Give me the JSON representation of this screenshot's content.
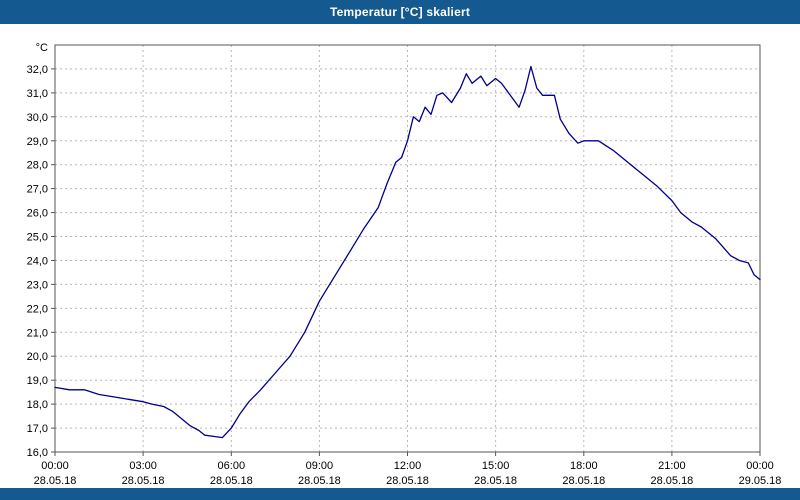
{
  "title_bar": {
    "title": "Temperatur [°C] skaliert",
    "bg": "#14598f",
    "fg": "#ffffff"
  },
  "footer": {
    "bg": "#14598f"
  },
  "chart_data": {
    "type": "line",
    "title": "Temperatur [°C] skaliert",
    "unit_label": "°C",
    "line_color": "#00008b",
    "grid_color": "#b8b8b8",
    "border_color": "#555555",
    "label_color": "#000000",
    "grid": "dashed",
    "legend_position": "none",
    "xlim_hours": [
      0,
      24
    ],
    "ylim": [
      16,
      33
    ],
    "ytick_values": [
      16,
      17,
      18,
      19,
      20,
      21,
      22,
      23,
      24,
      25,
      26,
      27,
      28,
      29,
      30,
      31,
      32
    ],
    "ytick_labels": [
      "16,0",
      "17,0",
      "18,0",
      "19,0",
      "20,0",
      "21,0",
      "22,0",
      "23,0",
      "24,0",
      "25,0",
      "26,0",
      "27,0",
      "28,0",
      "29,0",
      "30,0",
      "31,0",
      "32,0"
    ],
    "xtick_hours": [
      0,
      3,
      6,
      9,
      12,
      15,
      18,
      21,
      24
    ],
    "xtick_time_labels": [
      "00:00",
      "03:00",
      "06:00",
      "09:00",
      "12:00",
      "15:00",
      "18:00",
      "21:00",
      "00:00"
    ],
    "xtick_date_labels": [
      "28.05.18",
      "28.05.18",
      "28.05.18",
      "28.05.18",
      "28.05.18",
      "28.05.18",
      "28.05.18",
      "28.05.18",
      "29.05.18"
    ],
    "points": [
      [
        0.0,
        18.7
      ],
      [
        0.5,
        18.6
      ],
      [
        1.0,
        18.6
      ],
      [
        1.5,
        18.4
      ],
      [
        2.0,
        18.3
      ],
      [
        2.5,
        18.2
      ],
      [
        3.0,
        18.1
      ],
      [
        3.3,
        18.0
      ],
      [
        3.7,
        17.9
      ],
      [
        4.0,
        17.7
      ],
      [
        4.3,
        17.4
      ],
      [
        4.6,
        17.1
      ],
      [
        4.9,
        16.9
      ],
      [
        5.1,
        16.7
      ],
      [
        5.4,
        16.65
      ],
      [
        5.7,
        16.6
      ],
      [
        6.0,
        17.0
      ],
      [
        6.3,
        17.6
      ],
      [
        6.6,
        18.1
      ],
      [
        7.0,
        18.6
      ],
      [
        7.5,
        19.3
      ],
      [
        8.0,
        20.0
      ],
      [
        8.5,
        21.0
      ],
      [
        9.0,
        22.3
      ],
      [
        9.5,
        23.3
      ],
      [
        10.0,
        24.3
      ],
      [
        10.5,
        25.3
      ],
      [
        11.0,
        26.2
      ],
      [
        11.3,
        27.2
      ],
      [
        11.6,
        28.1
      ],
      [
        11.8,
        28.3
      ],
      [
        12.0,
        29.0
      ],
      [
        12.2,
        30.0
      ],
      [
        12.4,
        29.8
      ],
      [
        12.6,
        30.4
      ],
      [
        12.8,
        30.1
      ],
      [
        13.0,
        30.9
      ],
      [
        13.2,
        31.0
      ],
      [
        13.5,
        30.6
      ],
      [
        13.8,
        31.2
      ],
      [
        14.0,
        31.8
      ],
      [
        14.2,
        31.4
      ],
      [
        14.5,
        31.7
      ],
      [
        14.7,
        31.3
      ],
      [
        15.0,
        31.6
      ],
      [
        15.2,
        31.4
      ],
      [
        15.5,
        30.9
      ],
      [
        15.8,
        30.4
      ],
      [
        16.0,
        31.1
      ],
      [
        16.2,
        32.1
      ],
      [
        16.4,
        31.2
      ],
      [
        16.6,
        30.9
      ],
      [
        17.0,
        30.9
      ],
      [
        17.2,
        29.9
      ],
      [
        17.5,
        29.3
      ],
      [
        17.8,
        28.9
      ],
      [
        18.0,
        29.0
      ],
      [
        18.5,
        29.0
      ],
      [
        19.0,
        28.6
      ],
      [
        19.5,
        28.1
      ],
      [
        20.0,
        27.6
      ],
      [
        20.5,
        27.1
      ],
      [
        21.0,
        26.5
      ],
      [
        21.3,
        26.0
      ],
      [
        21.7,
        25.6
      ],
      [
        22.0,
        25.4
      ],
      [
        22.5,
        24.9
      ],
      [
        23.0,
        24.2
      ],
      [
        23.3,
        24.0
      ],
      [
        23.6,
        23.9
      ],
      [
        23.8,
        23.4
      ],
      [
        24.0,
        23.2
      ]
    ]
  }
}
